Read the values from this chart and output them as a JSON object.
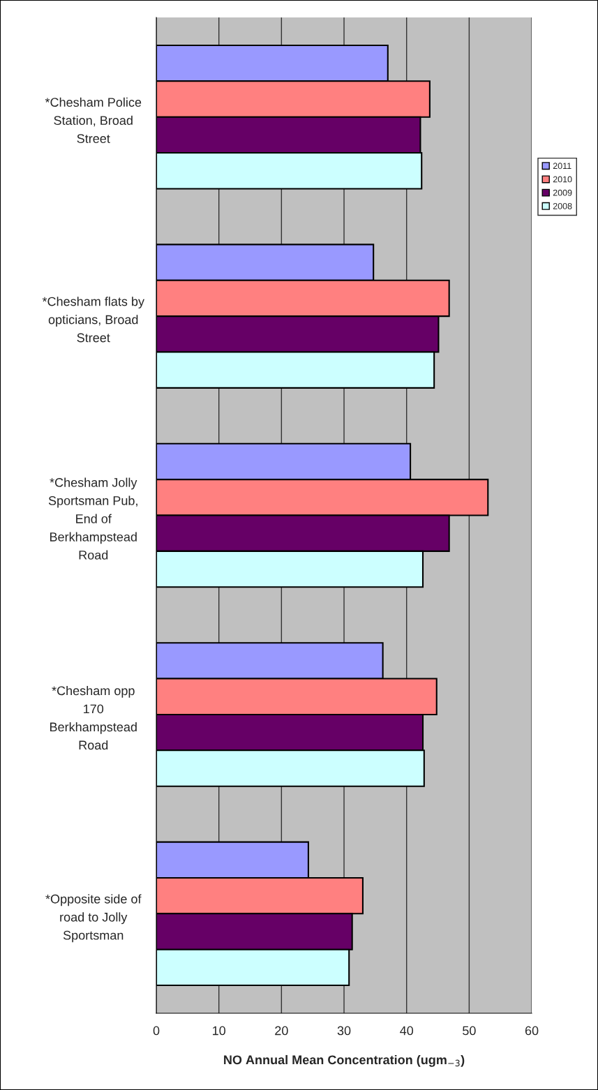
{
  "chart_data": {
    "type": "bar",
    "orientation": "horizontal",
    "categories": [
      "*Chesham Police\nStation, Broad\nStreet",
      "*Chesham flats by\nopticians, Broad\nStreet",
      "*Chesham Jolly\nSportsman Pub,\nEnd of\nBerkhampstead\nRoad",
      "*Chesham opp\n170\nBerkhampstead\nRoad",
      "*Opposite side of\nroad to Jolly\nSportsman"
    ],
    "series": [
      {
        "name": "2011",
        "color": "#9999ff",
        "values": [
          37.0,
          34.7,
          40.6,
          36.2,
          24.3
        ]
      },
      {
        "name": "2010",
        "color": "#ff8080",
        "values": [
          43.7,
          46.8,
          53.0,
          44.8,
          33.0
        ]
      },
      {
        "name": "2009",
        "color": "#660066",
        "values": [
          42.2,
          45.1,
          46.8,
          42.6,
          31.3
        ]
      },
      {
        "name": "2008",
        "color": "#ccffff",
        "values": [
          42.4,
          44.4,
          42.6,
          42.8,
          30.8
        ]
      }
    ],
    "xlabel": "NO Annual Mean Concentration (ugm$_{−3}$)",
    "xlim": [
      0,
      60
    ],
    "xticks": [
      0,
      10,
      20,
      30,
      40,
      50,
      60
    ],
    "grid": "x",
    "legend": "right"
  }
}
